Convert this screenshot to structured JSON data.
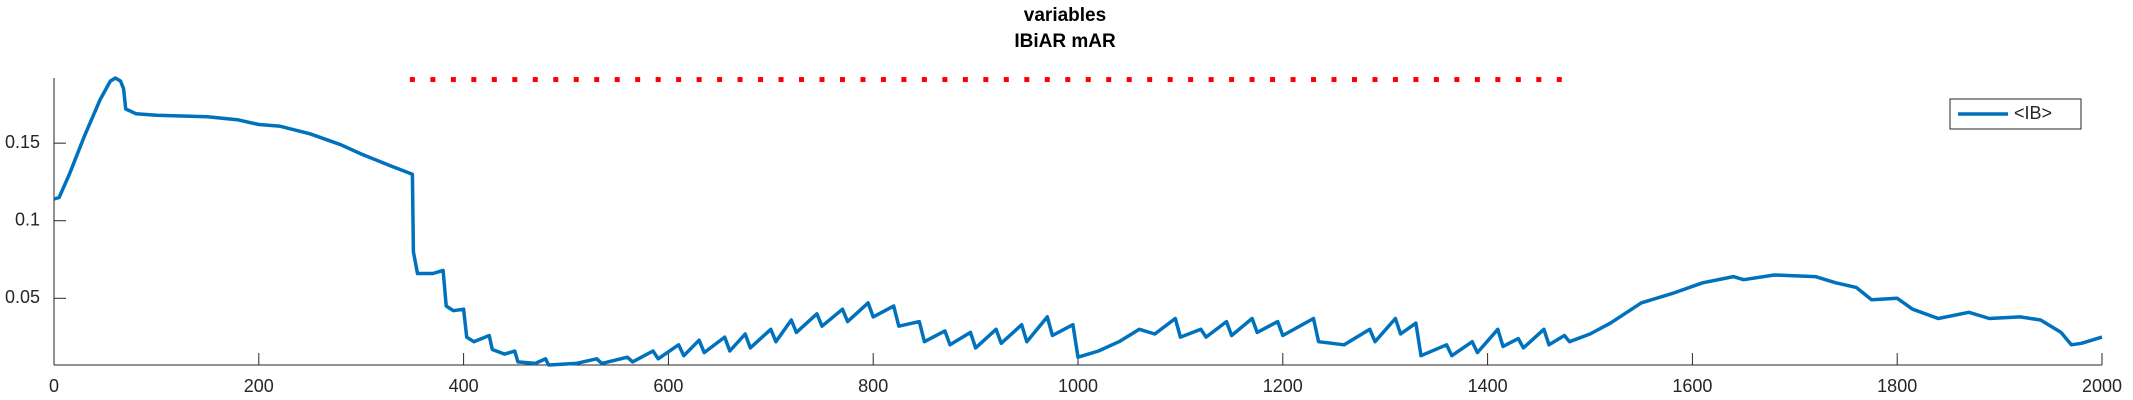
{
  "chart_data": {
    "type": "line",
    "title": "variables",
    "subtitle": "IBiAR mAR",
    "xlim": [
      0,
      2000
    ],
    "xticks": [
      0,
      200,
      400,
      600,
      800,
      1000,
      1200,
      1400,
      1600,
      1800,
      2000
    ],
    "ylim": [
      0.007,
      0.192
    ],
    "yticks": [
      0.05,
      0.1,
      0.15
    ],
    "legend": "northeast",
    "series": [
      {
        "name": "<IB>",
        "color": "#0072bd",
        "x": [
          0,
          5,
          15,
          30,
          45,
          55,
          60,
          65,
          68,
          70,
          80,
          100,
          150,
          180,
          200,
          220,
          250,
          280,
          300,
          330,
          350,
          351,
          355,
          370,
          380,
          383,
          390,
          400,
          403,
          410,
          425,
          428,
          440,
          450,
          453,
          470,
          480,
          483,
          510,
          530,
          535,
          560,
          565,
          585,
          590,
          610,
          615,
          630,
          635,
          655,
          660,
          675,
          680,
          700,
          705,
          720,
          725,
          745,
          750,
          770,
          775,
          795,
          800,
          820,
          825,
          845,
          850,
          870,
          875,
          895,
          900,
          920,
          925,
          945,
          950,
          970,
          975,
          995,
          1000,
          1020,
          1040,
          1060,
          1075,
          1095,
          1100,
          1120,
          1125,
          1145,
          1150,
          1170,
          1175,
          1195,
          1200,
          1230,
          1235,
          1260,
          1285,
          1290,
          1310,
          1315,
          1330,
          1335,
          1360,
          1365,
          1385,
          1390,
          1410,
          1415,
          1430,
          1435,
          1455,
          1460,
          1475,
          1480,
          1500,
          1520,
          1550,
          1580,
          1610,
          1640,
          1650,
          1680,
          1720,
          1740,
          1760,
          1775,
          1800,
          1815,
          1840,
          1870,
          1890,
          1920,
          1940,
          1960,
          1970,
          1980,
          2000
        ],
        "values": [
          0.114,
          0.115,
          0.13,
          0.155,
          0.178,
          0.19,
          0.192,
          0.19,
          0.185,
          0.172,
          0.169,
          0.168,
          0.167,
          0.165,
          0.162,
          0.161,
          0.156,
          0.149,
          0.143,
          0.135,
          0.13,
          0.08,
          0.066,
          0.066,
          0.068,
          0.045,
          0.042,
          0.043,
          0.025,
          0.022,
          0.026,
          0.017,
          0.014,
          0.016,
          0.009,
          0.008,
          0.011,
          0.007,
          0.008,
          0.011,
          0.008,
          0.012,
          0.009,
          0.016,
          0.011,
          0.02,
          0.013,
          0.023,
          0.015,
          0.025,
          0.016,
          0.027,
          0.018,
          0.03,
          0.022,
          0.036,
          0.028,
          0.04,
          0.032,
          0.043,
          0.035,
          0.047,
          0.038,
          0.045,
          0.032,
          0.035,
          0.022,
          0.029,
          0.02,
          0.028,
          0.018,
          0.03,
          0.021,
          0.033,
          0.022,
          0.038,
          0.026,
          0.033,
          0.012,
          0.016,
          0.022,
          0.03,
          0.027,
          0.037,
          0.025,
          0.03,
          0.025,
          0.035,
          0.026,
          0.037,
          0.028,
          0.035,
          0.026,
          0.037,
          0.022,
          0.02,
          0.03,
          0.022,
          0.037,
          0.027,
          0.034,
          0.013,
          0.02,
          0.013,
          0.022,
          0.015,
          0.03,
          0.019,
          0.024,
          0.018,
          0.03,
          0.02,
          0.026,
          0.022,
          0.027,
          0.034,
          0.047,
          0.053,
          0.06,
          0.064,
          0.062,
          0.065,
          0.064,
          0.06,
          0.057,
          0.049,
          0.05,
          0.043,
          0.037,
          0.041,
          0.037,
          0.038,
          0.036,
          0.028,
          0.02,
          0.021,
          0.025
        ]
      },
      {
        "color": "#ff0000",
        "marker": "dot",
        "x": [
          350,
          370,
          390,
          410,
          430,
          450,
          470,
          490,
          510,
          530,
          550,
          570,
          590,
          610,
          630,
          650,
          670,
          690,
          710,
          730,
          750,
          770,
          790,
          810,
          830,
          850,
          870,
          890,
          910,
          930,
          950,
          970,
          990,
          1010,
          1030,
          1050,
          1070,
          1090,
          1110,
          1130,
          1150,
          1170,
          1190,
          1210,
          1230,
          1250,
          1270,
          1290,
          1310,
          1330,
          1350,
          1370,
          1390,
          1410,
          1430,
          1450,
          1470
        ],
        "values": [
          0.191,
          0.191,
          0.191,
          0.191,
          0.191,
          0.191,
          0.191,
          0.191,
          0.191,
          0.191,
          0.191,
          0.191,
          0.191,
          0.191,
          0.191,
          0.191,
          0.191,
          0.191,
          0.191,
          0.191,
          0.191,
          0.191,
          0.191,
          0.191,
          0.191,
          0.191,
          0.191,
          0.191,
          0.191,
          0.191,
          0.191,
          0.191,
          0.191,
          0.191,
          0.191,
          0.191,
          0.191,
          0.191,
          0.191,
          0.191,
          0.191,
          0.191,
          0.191,
          0.191,
          0.191,
          0.191,
          0.191,
          0.191,
          0.191,
          0.191,
          0.191,
          0.191,
          0.191,
          0.191,
          0.191,
          0.191,
          0.191
        ]
      }
    ]
  }
}
